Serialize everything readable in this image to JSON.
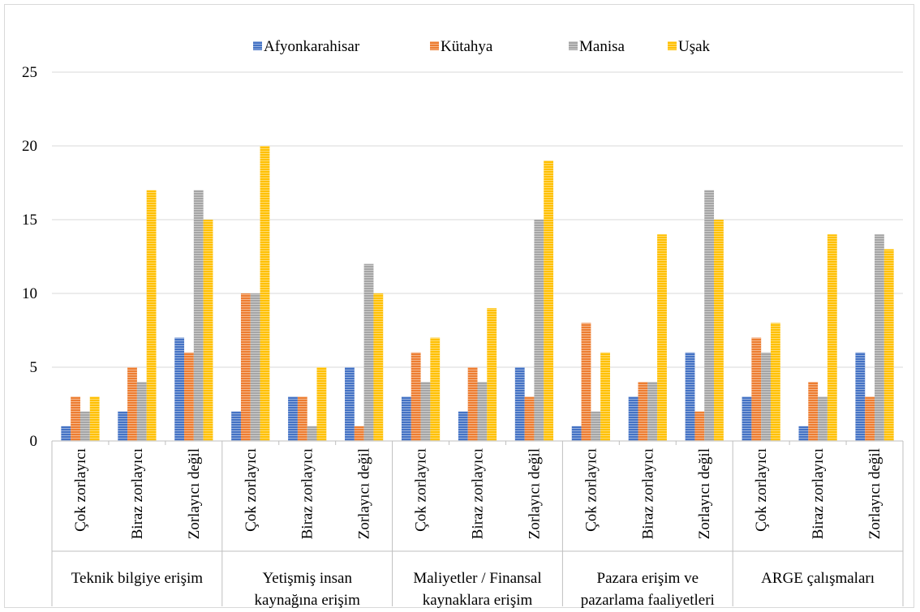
{
  "chart_data": {
    "type": "bar",
    "title": "",
    "xlabel": "",
    "ylabel": "",
    "ylim": [
      0,
      25
    ],
    "yticks": [
      0,
      5,
      10,
      15,
      20,
      25
    ],
    "grid": true,
    "legend_position": "top",
    "groups": [
      {
        "label": "Teknik bilgiye erişim",
        "label_lines": [
          "Teknik bilgiye erişim"
        ]
      },
      {
        "label": "Yetişmiş insan kaynağına erişim",
        "label_lines": [
          "Yetişmiş insan",
          "kaynağına erişim"
        ]
      },
      {
        "label": "Maliyetler / Finansal kaynaklara erişim",
        "label_lines": [
          "Maliyetler / Finansal",
          "kaynaklara erişim"
        ]
      },
      {
        "label": "Pazara erişim ve pazarlama faaliyetleri",
        "label_lines": [
          "Pazara erişim ve",
          "pazarlama faaliyetleri"
        ]
      },
      {
        "label": "ARGE çalışmaları",
        "label_lines": [
          "ARGE çalışmaları"
        ]
      }
    ],
    "subcategories": [
      "Çok zorlayıcı",
      "Biraz zorlayıcı",
      "Zorlayıcı değil"
    ],
    "series": [
      {
        "name": "Afyonkarahisar",
        "color": "#4472c4",
        "values": [
          1,
          2,
          7,
          2,
          3,
          5,
          3,
          2,
          5,
          1,
          3,
          6,
          3,
          1,
          6
        ]
      },
      {
        "name": "Kütahya",
        "color": "#ed7d31",
        "values": [
          3,
          5,
          6,
          10,
          3,
          1,
          6,
          5,
          3,
          8,
          4,
          2,
          7,
          4,
          3
        ]
      },
      {
        "name": "Manisa",
        "color": "#a5a5a5",
        "values": [
          2,
          4,
          17,
          10,
          1,
          12,
          4,
          4,
          15,
          2,
          4,
          17,
          6,
          3,
          14
        ]
      },
      {
        "name": "Uşak",
        "color": "#ffc000",
        "values": [
          3,
          17,
          15,
          20,
          5,
          10,
          7,
          9,
          19,
          6,
          14,
          15,
          8,
          14,
          13
        ]
      }
    ]
  }
}
